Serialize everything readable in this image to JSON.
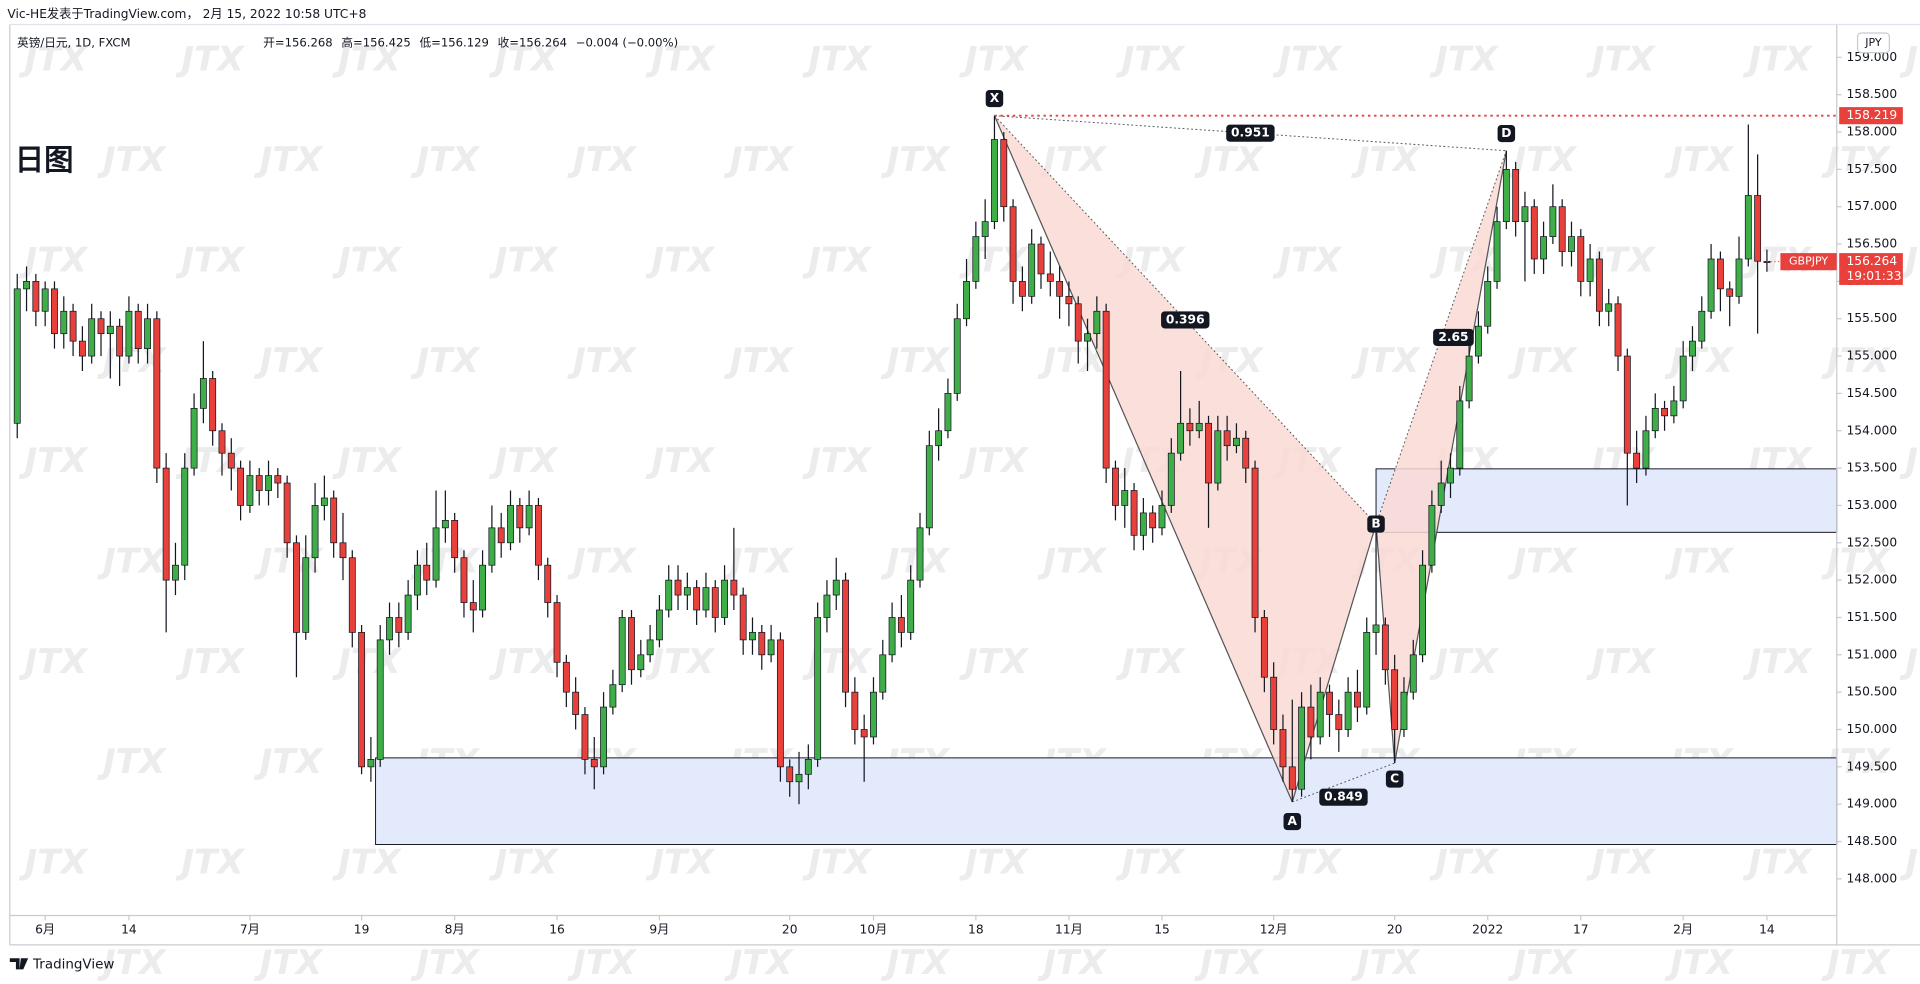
{
  "header": {
    "byline": "Vic-HE发表于TradingView.com， 2月 15, 2022 10:58 UTC+8"
  },
  "chart_data": {
    "type": "candlestick",
    "title": "日图",
    "info": [
      "英镑/日元, 1D, FXCM",
      "开=156.268",
      "高=156.425",
      "低=156.129",
      "收=156.264",
      "−0.004 (−0.00%)"
    ],
    "currency": "JPY",
    "symbol": "GBPJPY",
    "countdown": "19:01:33",
    "watermark": "JTX",
    "footer": "TradingView",
    "up_color": "#3fae49",
    "down_color": "#e8413c",
    "grid": false,
    "xlim": [
      -0.8,
      195.5
    ],
    "ylim": [
      147.51,
      159.44
    ],
    "xticks": [
      {
        "value": 3,
        "label": "6月"
      },
      {
        "value": 12,
        "label": "14"
      },
      {
        "value": 25,
        "label": "7月"
      },
      {
        "value": 37,
        "label": "19"
      },
      {
        "value": 47,
        "label": "8月"
      },
      {
        "value": 58,
        "label": "16"
      },
      {
        "value": 69,
        "label": "9月"
      },
      {
        "value": 83,
        "label": "20"
      },
      {
        "value": 92,
        "label": "10月"
      },
      {
        "value": 103,
        "label": "18"
      },
      {
        "value": 113,
        "label": "11月"
      },
      {
        "value": 123,
        "label": "15"
      },
      {
        "value": 135,
        "label": "12月"
      },
      {
        "value": 148,
        "label": "20"
      },
      {
        "value": 158,
        "label": "2022"
      },
      {
        "value": 168,
        "label": "17"
      },
      {
        "value": 179,
        "label": "2月"
      },
      {
        "value": 188,
        "label": "14"
      }
    ],
    "yticks": [
      {
        "value": 148,
        "label": "148.000"
      },
      {
        "value": 148.5,
        "label": "148.500"
      },
      {
        "value": 149,
        "label": "149.000"
      },
      {
        "value": 149.5,
        "label": "149.500"
      },
      {
        "value": 150,
        "label": "150.000"
      },
      {
        "value": 150.5,
        "label": "150.500"
      },
      {
        "value": 151,
        "label": "151.000"
      },
      {
        "value": 151.5,
        "label": "151.500"
      },
      {
        "value": 152,
        "label": "152.000"
      },
      {
        "value": 152.5,
        "label": "152.500"
      },
      {
        "value": 153,
        "label": "153.000"
      },
      {
        "value": 153.5,
        "label": "153.500"
      },
      {
        "value": 154,
        "label": "154.000"
      },
      {
        "value": 154.5,
        "label": "154.500"
      },
      {
        "value": 155,
        "label": "155.000"
      },
      {
        "value": 155.5,
        "label": "155.500"
      },
      {
        "value": 156,
        "label": "156.000"
      },
      {
        "value": 156.5,
        "label": "156.500"
      },
      {
        "value": 157,
        "label": "157.000"
      },
      {
        "value": 157.5,
        "label": "157.500"
      },
      {
        "value": 158,
        "label": "158.000"
      },
      {
        "value": 158.5,
        "label": "158.500"
      },
      {
        "value": 159,
        "label": "159.000"
      }
    ],
    "zones": [
      {
        "start": 38.5,
        "top": 149.62,
        "bottom": 148.46,
        "color": "#e3eafc"
      },
      {
        "start": 146,
        "top": 153.49,
        "bottom": 152.64,
        "color": "#e3eafc"
      }
    ],
    "pattern": {
      "fill": "#f9d9d5",
      "points": [
        {
          "label": "X",
          "index": 105,
          "price": 158.219
        },
        {
          "label": "A",
          "index": 137,
          "price": 149.03
        },
        {
          "label": "B",
          "index": 146,
          "price": 152.75
        },
        {
          "label": "C",
          "index": 148,
          "price": 149.55
        },
        {
          "label": "D",
          "index": 160,
          "price": 157.75
        }
      ],
      "ratios": [
        "0.396",
        "0.849",
        "2.65",
        "0.951"
      ]
    },
    "candles": [
      [
        154.1,
        156.1,
        153.9,
        155.9
      ],
      [
        155.9,
        156.2,
        155.6,
        156.0
      ],
      [
        156.0,
        156.1,
        155.4,
        155.6
      ],
      [
        155.6,
        156.0,
        155.4,
        155.9
      ],
      [
        155.9,
        156.0,
        155.1,
        155.3
      ],
      [
        155.3,
        155.8,
        155.1,
        155.6
      ],
      [
        155.6,
        155.7,
        155.0,
        155.2
      ],
      [
        155.2,
        155.4,
        154.8,
        155.0
      ],
      [
        155.0,
        155.7,
        154.9,
        155.5
      ],
      [
        155.5,
        155.6,
        155.0,
        155.3
      ],
      [
        155.3,
        155.6,
        154.7,
        155.4
      ],
      [
        155.4,
        155.5,
        154.6,
        155.0
      ],
      [
        155.0,
        155.8,
        154.9,
        155.6
      ],
      [
        155.6,
        155.7,
        154.9,
        155.1
      ],
      [
        155.1,
        155.7,
        154.9,
        155.5
      ],
      [
        155.5,
        155.6,
        153.3,
        153.5
      ],
      [
        153.5,
        153.7,
        151.3,
        152.0
      ],
      [
        152.0,
        152.5,
        151.8,
        152.2
      ],
      [
        152.2,
        153.7,
        152.0,
        153.5
      ],
      [
        153.5,
        154.5,
        153.4,
        154.3
      ],
      [
        154.3,
        155.2,
        154.1,
        154.7
      ],
      [
        154.7,
        154.8,
        153.8,
        154.0
      ],
      [
        154.0,
        154.1,
        153.4,
        153.7
      ],
      [
        153.7,
        153.9,
        153.2,
        153.5
      ],
      [
        153.5,
        153.6,
        152.8,
        153.0
      ],
      [
        153.0,
        153.6,
        152.9,
        153.4
      ],
      [
        153.4,
        153.5,
        153.0,
        153.2
      ],
      [
        153.2,
        153.6,
        153.0,
        153.4
      ],
      [
        153.4,
        153.5,
        153.1,
        153.3
      ],
      [
        153.3,
        153.4,
        152.3,
        152.5
      ],
      [
        152.5,
        152.6,
        150.7,
        151.3
      ],
      [
        151.3,
        152.6,
        151.2,
        152.3
      ],
      [
        152.3,
        153.3,
        152.1,
        153.0
      ],
      [
        153.0,
        153.4,
        152.8,
        153.1
      ],
      [
        153.1,
        153.2,
        152.3,
        152.5
      ],
      [
        152.5,
        152.9,
        152.0,
        152.3
      ],
      [
        152.3,
        152.4,
        151.1,
        151.3
      ],
      [
        151.3,
        151.4,
        149.4,
        149.5
      ],
      [
        149.5,
        149.9,
        149.3,
        149.6
      ],
      [
        149.6,
        151.4,
        149.5,
        151.2
      ],
      [
        151.2,
        151.7,
        151.0,
        151.5
      ],
      [
        151.5,
        151.7,
        151.1,
        151.3
      ],
      [
        151.3,
        152.0,
        151.2,
        151.8
      ],
      [
        151.8,
        152.4,
        151.6,
        152.2
      ],
      [
        152.2,
        152.5,
        151.8,
        152.0
      ],
      [
        152.0,
        153.2,
        151.9,
        152.7
      ],
      [
        152.7,
        153.2,
        152.5,
        152.8
      ],
      [
        152.8,
        152.9,
        152.1,
        152.3
      ],
      [
        152.3,
        152.4,
        151.5,
        151.7
      ],
      [
        151.7,
        152.0,
        151.3,
        151.6
      ],
      [
        151.6,
        152.4,
        151.5,
        152.2
      ],
      [
        152.2,
        153.0,
        152.1,
        152.7
      ],
      [
        152.7,
        152.9,
        152.3,
        152.5
      ],
      [
        152.5,
        153.2,
        152.4,
        153.0
      ],
      [
        153.0,
        153.1,
        152.5,
        152.7
      ],
      [
        152.7,
        153.2,
        152.6,
        153.0
      ],
      [
        153.0,
        153.1,
        152.0,
        152.2
      ],
      [
        152.2,
        152.3,
        151.5,
        151.7
      ],
      [
        151.7,
        151.8,
        150.7,
        150.9
      ],
      [
        150.9,
        151.0,
        150.3,
        150.5
      ],
      [
        150.5,
        150.7,
        150.0,
        150.2
      ],
      [
        150.2,
        150.3,
        149.4,
        149.6
      ],
      [
        149.6,
        149.9,
        149.2,
        149.5
      ],
      [
        149.5,
        150.5,
        149.4,
        150.3
      ],
      [
        150.3,
        150.8,
        150.2,
        150.6
      ],
      [
        150.6,
        151.6,
        150.5,
        151.5
      ],
      [
        151.5,
        151.6,
        150.6,
        150.8
      ],
      [
        150.8,
        151.2,
        150.7,
        151.0
      ],
      [
        151.0,
        151.4,
        150.9,
        151.2
      ],
      [
        151.2,
        151.8,
        151.1,
        151.6
      ],
      [
        151.6,
        152.2,
        151.5,
        152.0
      ],
      [
        152.0,
        152.2,
        151.6,
        151.8
      ],
      [
        151.8,
        152.1,
        151.6,
        151.9
      ],
      [
        151.9,
        152.0,
        151.4,
        151.6
      ],
      [
        151.6,
        152.1,
        151.5,
        151.9
      ],
      [
        151.9,
        152.0,
        151.3,
        151.5
      ],
      [
        151.5,
        152.2,
        151.4,
        152.0
      ],
      [
        152.0,
        152.7,
        151.6,
        151.8
      ],
      [
        151.8,
        151.9,
        151.0,
        151.2
      ],
      [
        151.2,
        151.5,
        151.0,
        151.3
      ],
      [
        151.3,
        151.4,
        150.8,
        151.0
      ],
      [
        151.0,
        151.4,
        150.9,
        151.2
      ],
      [
        151.2,
        151.3,
        149.3,
        149.5
      ],
      [
        149.5,
        149.6,
        149.1,
        149.3
      ],
      [
        149.3,
        149.7,
        149.0,
        149.4
      ],
      [
        149.4,
        149.8,
        149.2,
        149.6
      ],
      [
        149.6,
        151.7,
        149.5,
        151.5
      ],
      [
        151.5,
        152.0,
        151.3,
        151.8
      ],
      [
        151.8,
        152.3,
        151.6,
        152.0
      ],
      [
        152.0,
        152.1,
        150.3,
        150.5
      ],
      [
        150.5,
        150.7,
        149.8,
        150.0
      ],
      [
        150.0,
        150.2,
        149.3,
        149.9
      ],
      [
        149.9,
        150.7,
        149.8,
        150.5
      ],
      [
        150.5,
        151.2,
        150.4,
        151.0
      ],
      [
        151.0,
        151.7,
        150.9,
        151.5
      ],
      [
        151.5,
        151.8,
        151.1,
        151.3
      ],
      [
        151.3,
        152.2,
        151.2,
        152.0
      ],
      [
        152.0,
        152.9,
        151.9,
        152.7
      ],
      [
        152.7,
        154.0,
        152.6,
        153.8
      ],
      [
        153.8,
        154.3,
        153.6,
        154.0
      ],
      [
        154.0,
        154.7,
        153.9,
        154.5
      ],
      [
        154.5,
        155.7,
        154.4,
        155.5
      ],
      [
        155.5,
        156.3,
        155.4,
        156.0
      ],
      [
        156.0,
        156.8,
        155.9,
        156.6
      ],
      [
        156.6,
        157.1,
        156.3,
        156.8
      ],
      [
        156.8,
        158.219,
        156.7,
        157.9
      ],
      [
        157.9,
        158.0,
        156.8,
        157.0
      ],
      [
        157.0,
        157.1,
        155.7,
        156.0
      ],
      [
        156.0,
        156.2,
        155.6,
        155.8
      ],
      [
        155.8,
        156.7,
        155.7,
        156.5
      ],
      [
        156.5,
        156.6,
        155.9,
        156.1
      ],
      [
        156.1,
        156.4,
        155.8,
        156.0
      ],
      [
        156.0,
        156.2,
        155.5,
        155.8
      ],
      [
        155.8,
        156.0,
        155.4,
        155.7
      ],
      [
        155.7,
        155.8,
        154.9,
        155.2
      ],
      [
        155.2,
        155.5,
        154.8,
        155.3
      ],
      [
        155.3,
        155.8,
        155.1,
        155.6
      ],
      [
        155.6,
        155.7,
        153.3,
        153.5
      ],
      [
        153.5,
        153.6,
        152.8,
        153.0
      ],
      [
        153.0,
        153.5,
        152.7,
        153.2
      ],
      [
        153.2,
        153.3,
        152.4,
        152.6
      ],
      [
        152.6,
        153.1,
        152.4,
        152.9
      ],
      [
        152.9,
        153.0,
        152.5,
        152.7
      ],
      [
        152.7,
        153.2,
        152.6,
        153.0
      ],
      [
        153.0,
        153.9,
        152.9,
        153.7
      ],
      [
        153.7,
        154.8,
        153.6,
        154.1
      ],
      [
        154.1,
        154.3,
        153.8,
        154.0
      ],
      [
        154.0,
        154.4,
        153.9,
        154.1
      ],
      [
        154.1,
        154.2,
        152.7,
        153.3
      ],
      [
        153.3,
        154.2,
        153.2,
        154.0
      ],
      [
        154.0,
        154.2,
        153.6,
        153.8
      ],
      [
        153.8,
        154.1,
        153.7,
        153.9
      ],
      [
        153.9,
        154.0,
        153.3,
        153.5
      ],
      [
        153.5,
        153.6,
        151.3,
        151.5
      ],
      [
        151.5,
        151.6,
        150.5,
        150.7
      ],
      [
        150.7,
        150.9,
        149.8,
        150.0
      ],
      [
        150.0,
        150.2,
        149.3,
        149.5
      ],
      [
        149.5,
        150.4,
        149.03,
        149.2
      ],
      [
        149.2,
        150.5,
        149.1,
        150.3
      ],
      [
        150.3,
        150.6,
        149.6,
        149.9
      ],
      [
        149.9,
        150.7,
        149.8,
        150.5
      ],
      [
        150.5,
        150.6,
        149.9,
        150.2
      ],
      [
        150.2,
        150.4,
        149.7,
        150.0
      ],
      [
        150.0,
        150.7,
        149.9,
        150.5
      ],
      [
        150.5,
        150.8,
        150.1,
        150.3
      ],
      [
        150.3,
        151.5,
        150.2,
        151.3
      ],
      [
        151.3,
        152.75,
        151.0,
        151.4
      ],
      [
        151.4,
        151.5,
        150.6,
        150.8
      ],
      [
        150.8,
        151.0,
        149.55,
        150.0
      ],
      [
        150.0,
        150.7,
        149.9,
        150.5
      ],
      [
        150.5,
        151.2,
        150.4,
        151.0
      ],
      [
        151.0,
        152.4,
        150.9,
        152.2
      ],
      [
        152.2,
        153.2,
        152.1,
        153.0
      ],
      [
        153.0,
        153.6,
        152.9,
        153.3
      ],
      [
        153.3,
        153.7,
        153.1,
        153.5
      ],
      [
        153.5,
        154.6,
        153.4,
        154.4
      ],
      [
        154.4,
        155.2,
        154.3,
        155.0
      ],
      [
        155.0,
        155.6,
        154.9,
        155.4
      ],
      [
        155.4,
        156.2,
        155.3,
        156.0
      ],
      [
        156.0,
        157.0,
        155.9,
        156.8
      ],
      [
        156.8,
        157.75,
        156.7,
        157.5
      ],
      [
        157.5,
        157.6,
        156.6,
        156.8
      ],
      [
        156.8,
        157.2,
        156.0,
        157.0
      ],
      [
        157.0,
        157.1,
        156.1,
        156.3
      ],
      [
        156.3,
        156.8,
        156.1,
        156.6
      ],
      [
        156.6,
        157.3,
        156.5,
        157.0
      ],
      [
        157.0,
        157.1,
        156.2,
        156.4
      ],
      [
        156.4,
        156.8,
        156.2,
        156.6
      ],
      [
        156.6,
        156.7,
        155.8,
        156.0
      ],
      [
        156.0,
        156.5,
        155.8,
        156.3
      ],
      [
        156.3,
        156.4,
        155.4,
        155.6
      ],
      [
        155.6,
        155.9,
        155.4,
        155.7
      ],
      [
        155.7,
        155.8,
        154.8,
        155.0
      ],
      [
        155.0,
        155.1,
        153.0,
        153.7
      ],
      [
        153.7,
        154.0,
        153.3,
        153.5
      ],
      [
        153.5,
        154.2,
        153.4,
        154.0
      ],
      [
        154.0,
        154.5,
        153.9,
        154.3
      ],
      [
        154.3,
        154.4,
        154.0,
        154.2
      ],
      [
        154.2,
        154.6,
        154.1,
        154.4
      ],
      [
        154.4,
        155.2,
        154.3,
        155.0
      ],
      [
        155.0,
        155.4,
        154.8,
        155.2
      ],
      [
        155.2,
        155.8,
        155.1,
        155.6
      ],
      [
        155.6,
        156.5,
        155.5,
        156.3
      ],
      [
        156.3,
        156.4,
        155.6,
        155.9
      ],
      [
        155.9,
        156.0,
        155.4,
        155.8
      ],
      [
        155.8,
        156.6,
        155.7,
        156.3
      ],
      [
        156.3,
        158.1,
        156.2,
        157.15
      ],
      [
        157.15,
        157.7,
        155.3,
        156.27
      ],
      [
        156.268,
        156.425,
        156.129,
        156.264
      ]
    ]
  }
}
